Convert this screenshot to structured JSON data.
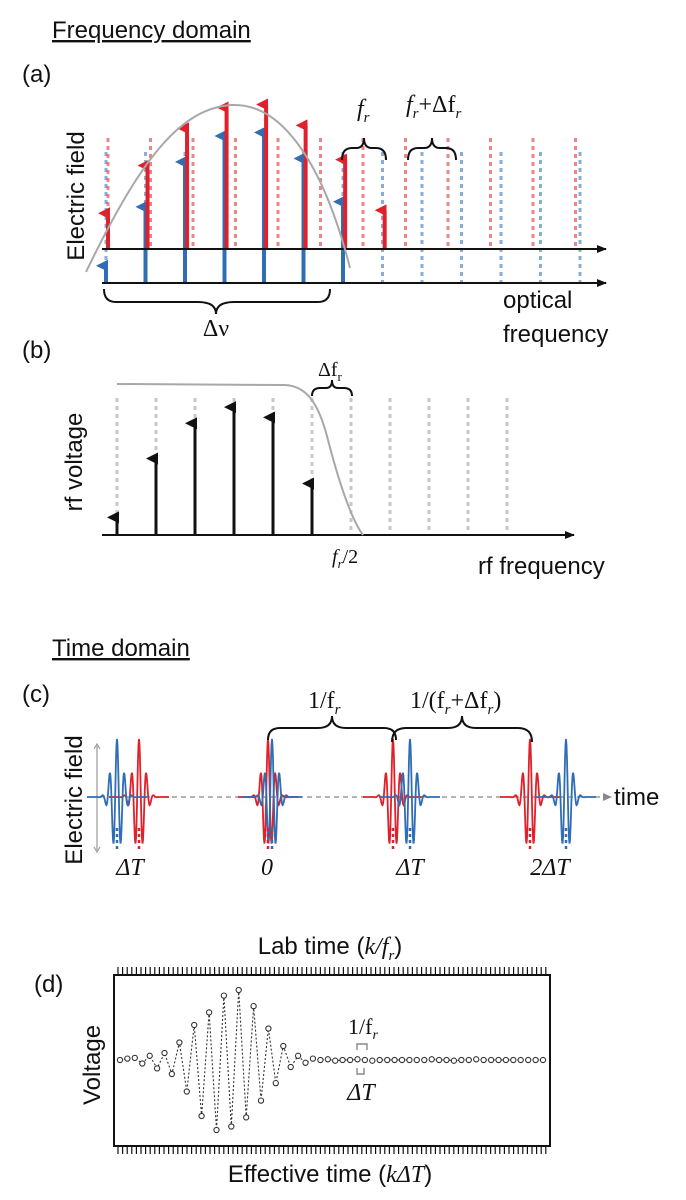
{
  "headings": {
    "frequency": "Frequency domain",
    "time": "Time domain"
  },
  "panel_a": {
    "label": "(a)",
    "ylabel": "Electric field",
    "xlabel_line1": "optical",
    "xlabel_line2": "frequency",
    "f_r": "f",
    "f_r_sub": "r",
    "f_r_plus_prefix": "f",
    "f_r_plus_sub": "r",
    "f_r_plus_suffix": "+Δf",
    "f_r_plus_sub2": "r",
    "delta_nu": "Δν",
    "red_amplitudes": [
      0.24,
      0.56,
      0.81,
      0.95,
      0.97,
      0.83,
      0.6,
      0.26
    ],
    "blue_amplitudes": [
      0.1,
      0.44,
      0.7,
      0.85,
      0.87,
      0.72,
      0.47
    ],
    "colors": {
      "red": "#e0202a",
      "blue": "#2f6db5",
      "envelope": "#a8a8a8"
    }
  },
  "panel_b": {
    "label": "(b)",
    "ylabel": "rf voltage",
    "xlabel": "rf frequency",
    "delta_f_r": "Δf",
    "delta_f_r_sub": "r",
    "fr_half": "f",
    "fr_half_sub": "r",
    "fr_half_suffix": "/2",
    "amplitudes": [
      0.12,
      0.52,
      0.76,
      0.87,
      0.8,
      0.35
    ]
  },
  "panel_c": {
    "label": "(c)",
    "ylabel": "Electric field",
    "xlabel": "time",
    "bracket1_prefix": "1/f",
    "bracket1_sub": "r",
    "bracket2_prefix": "1/(f",
    "bracket2_sub": "r",
    "bracket2_mid": "+Δf",
    "bracket2_sub2": "r",
    "bracket2_suffix": ")",
    "ticks": [
      "ΔT",
      "0",
      "ΔT",
      "2ΔT"
    ]
  },
  "panel_d": {
    "label": "(d)",
    "top_label_prefix": "Lab time (",
    "top_label_var": "k/f",
    "top_label_sub": "r",
    "top_label_suffix": ")",
    "bottom_label_prefix": "Effective time (",
    "bottom_label_var": "kΔT",
    "bottom_label_suffix": ")",
    "ylabel": "Voltage",
    "period_prefix": "1/f",
    "period_sub": "r",
    "delta_t": "ΔT",
    "samples": [
      0.0,
      0.02,
      0.03,
      -0.05,
      0.06,
      -0.12,
      0.1,
      -0.2,
      0.25,
      -0.45,
      0.5,
      -0.8,
      0.68,
      -1.0,
      0.92,
      -0.95,
      1.0,
      -0.82,
      0.77,
      -0.58,
      0.45,
      -0.33,
      0.2,
      -0.1,
      0.06,
      -0.04,
      0.02,
      0.0,
      0.01,
      -0.01,
      0.0,
      0.0,
      0.01,
      0.0,
      -0.01,
      0.0,
      0.0,
      0.0,
      0.0,
      0.0,
      0.0,
      0.0,
      0.01,
      0.0,
      0.0,
      -0.01,
      0.0,
      0.0,
      0.01,
      0.0,
      0.0,
      0.0,
      0.0,
      0.0,
      0.0,
      0.0,
      0.0,
      0.0
    ]
  }
}
